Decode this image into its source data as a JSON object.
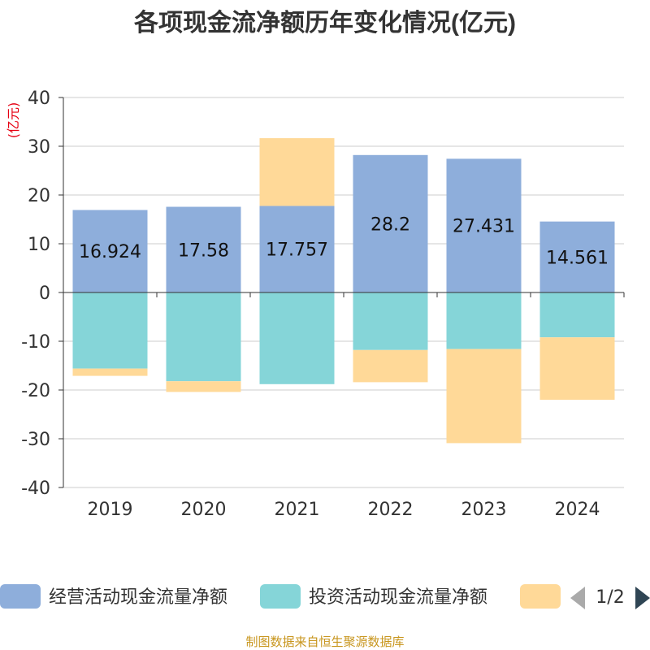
{
  "chart_data": {
    "type": "bar",
    "stacked": true,
    "title": "各项现金流净额历年变化情况(亿元)",
    "ylabel": "(亿元)",
    "xlabel": "",
    "ylim": [
      -40,
      40
    ],
    "yticks": [
      40,
      30,
      20,
      10,
      0,
      -10,
      -20,
      -30,
      -40
    ],
    "grid": true,
    "categories": [
      "2019",
      "2020",
      "2021",
      "2022",
      "2023",
      "2024"
    ],
    "series": [
      {
        "name": "经营活动现金流量净额",
        "color": "#8eaedb",
        "values": [
          16.924,
          17.58,
          17.757,
          28.2,
          27.431,
          14.561
        ],
        "labels": [
          "16.924",
          "17.58",
          "17.757",
          "28.2",
          "27.431",
          "14.561"
        ]
      },
      {
        "name": "投资活动现金流量净额",
        "color": "#85d5d8",
        "values": [
          -15.6,
          -18.2,
          -18.8,
          -11.8,
          -11.6,
          -9.2
        ],
        "labels": [
          "",
          "",
          "",
          "",
          "",
          ""
        ]
      },
      {
        "name": "",
        "color": "#ffd998",
        "values": [
          -1.5,
          -2.2,
          13.9,
          -6.6,
          -19.3,
          -12.8
        ],
        "labels": [
          "",
          "",
          "",
          "",
          "",
          ""
        ]
      }
    ],
    "legend": {
      "position": "bottom",
      "page": "1/2"
    }
  },
  "footer": {
    "source": "制图数据来自恒生聚源数据库"
  }
}
